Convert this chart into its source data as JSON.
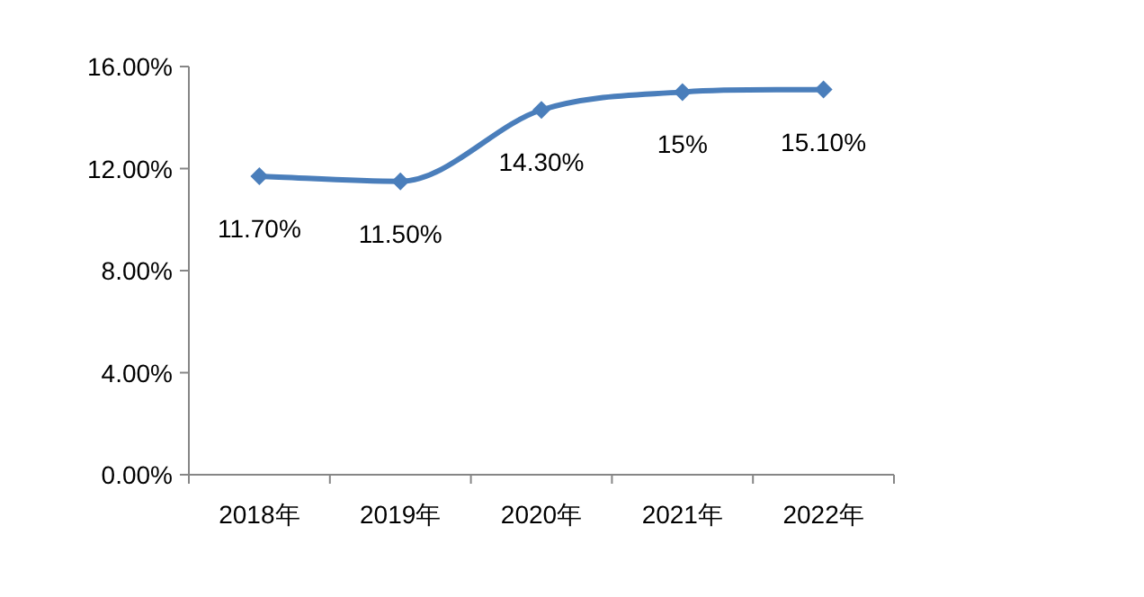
{
  "chart_data": {
    "type": "line",
    "categories": [
      "2018年",
      "2019年",
      "2020年",
      "2021年",
      "2022年"
    ],
    "series": [
      {
        "color": "#4a7ebb",
        "values": [
          11.7,
          11.5,
          14.3,
          15,
          15.1
        ],
        "value_labels": [
          "11.70%",
          "11.50%",
          "14.30%",
          "15%",
          "15.10%"
        ]
      }
    ],
    "ylim": [
      0,
      16
    ],
    "yticks": [
      {
        "value": 0,
        "label": "0.00%"
      },
      {
        "value": 4,
        "label": "4.00%"
      },
      {
        "value": 8,
        "label": "8.00%"
      },
      {
        "value": 12,
        "label": "12.00%"
      },
      {
        "value": 16,
        "label": "16.00%"
      }
    ],
    "marker": "diamond",
    "line_style": "solid",
    "grid": false
  }
}
